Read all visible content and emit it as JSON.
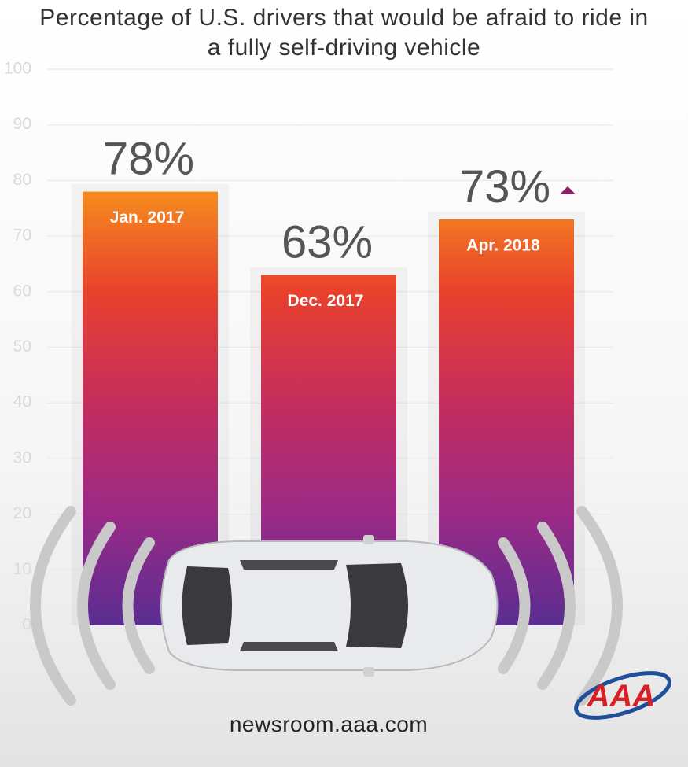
{
  "chart_data": {
    "type": "bar",
    "title": "Percentage of U.S. drivers that would be afraid to ride in a fully self-driving vehicle",
    "categories": [
      "Jan. 2017",
      "Dec. 2017",
      "Apr. 2018"
    ],
    "values": [
      78,
      63,
      73
    ],
    "value_labels": [
      "78%",
      "63%",
      "73%"
    ],
    "ylim": [
      0,
      100
    ],
    "yticks": [
      0,
      10,
      20,
      30,
      40,
      50,
      60,
      70,
      80,
      90,
      100
    ],
    "grid": true,
    "colors": [
      "#f7941d",
      "#e8412c",
      "#c42d5e",
      "#9b2a86",
      "#5a2d91"
    ]
  },
  "footer": {
    "url": "newsroom.aaa.com",
    "logo": "AAA"
  }
}
